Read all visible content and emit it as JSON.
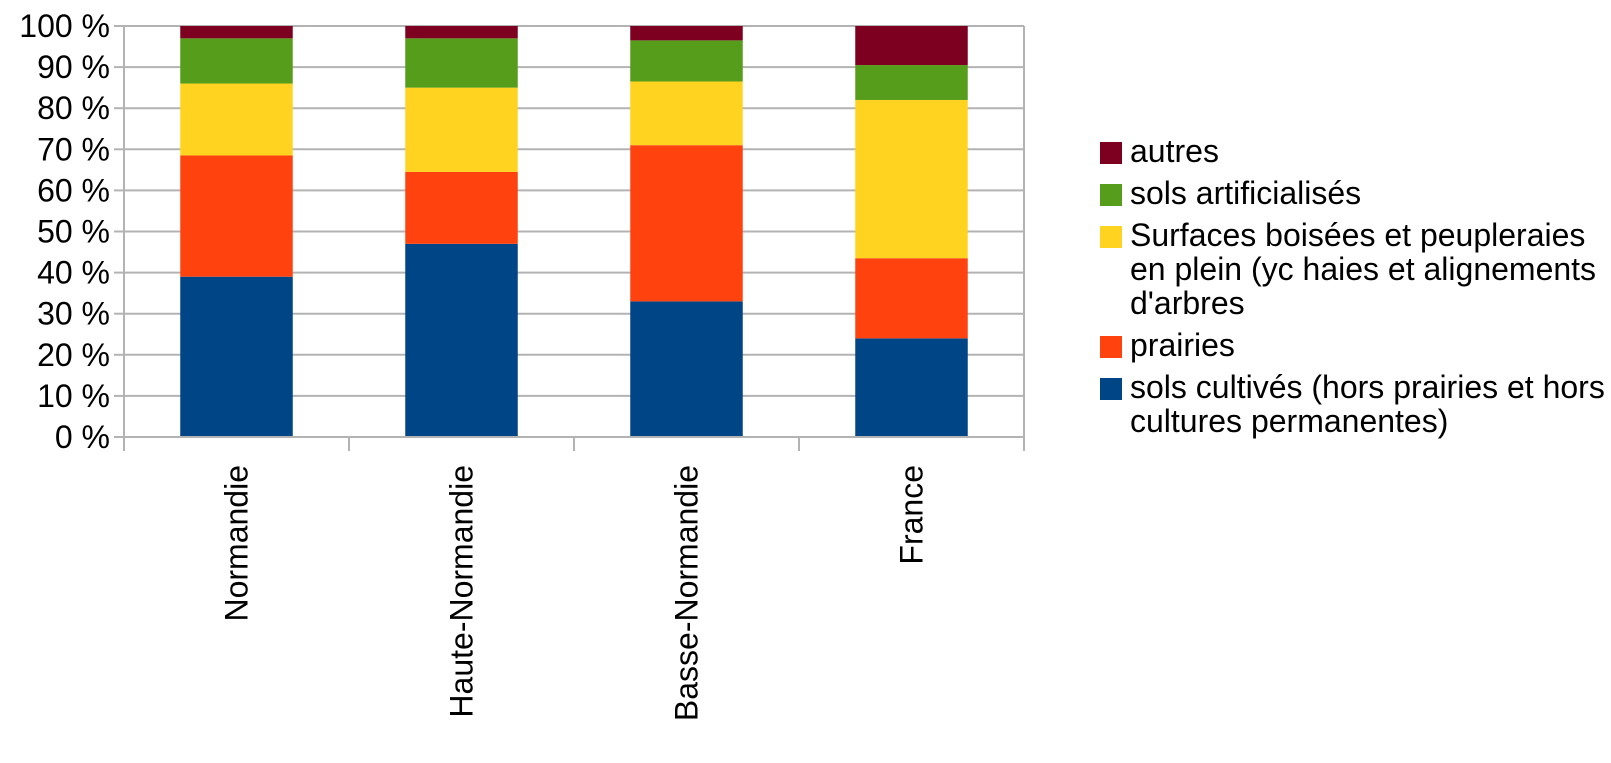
{
  "chart_data": {
    "type": "bar",
    "stacked": true,
    "categories": [
      "Normandie",
      "Haute-Normandie",
      "Basse-Normandie",
      "France"
    ],
    "y_tick_labels": [
      "0 %",
      "10 %",
      "20 %",
      "30 %",
      "40 %",
      "50 %",
      "60 %",
      "70 %",
      "80 %",
      "90 %",
      "100 %"
    ],
    "ylim": [
      0,
      100
    ],
    "grid": true,
    "legend_position": "right",
    "series": [
      {
        "name": "sols cultivés (hors prairies et hors cultures permanentes)",
        "color": "#004586",
        "values": [
          39,
          47,
          33,
          24
        ]
      },
      {
        "name": "prairies",
        "color": "#ff420e",
        "values": [
          29.5,
          17.5,
          38,
          19.5
        ]
      },
      {
        "name": "Surfaces boisées et peupleraies en plein (yc haies et alignements d'arbres",
        "color": "#ffd320",
        "values": [
          17.5,
          20.5,
          15.5,
          38.5
        ]
      },
      {
        "name": "sols artificialisés",
        "color": "#579d1c",
        "values": [
          11,
          12,
          10,
          8.5
        ]
      },
      {
        "name": "autres",
        "color": "#7e0021",
        "values": [
          3,
          3,
          3.5,
          9.5
        ]
      }
    ]
  },
  "legend": [
    {
      "label": "autres",
      "color": "#7e0021"
    },
    {
      "label": "sols artificialisés",
      "color": "#579d1c"
    },
    {
      "label": "Surfaces boisées et peupleraies en plein (yc haies et alignements d'arbres",
      "color": "#ffd320"
    },
    {
      "label": "prairies",
      "color": "#ff420e"
    },
    {
      "label": "sols cultivés (hors prairies et hors cultures permanentes)",
      "color": "#004586"
    }
  ]
}
